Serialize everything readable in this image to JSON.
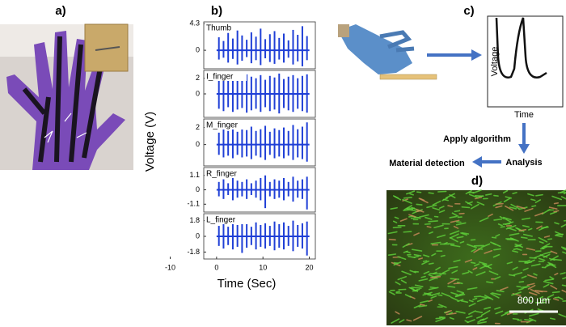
{
  "panel_labels": [
    "a)",
    "b)",
    "c)",
    "d)"
  ],
  "shared_axis": {
    "ylabel": "Voltage (V)",
    "xlabel": "Time (Sec)",
    "xlim": [
      -10,
      21.3
    ],
    "xticks": [
      -10,
      0,
      10,
      20
    ]
  },
  "chart_data": [
    {
      "type": "spike",
      "title": "Thumb",
      "ylim": [
        -3,
        4.6
      ],
      "yticks": [
        0,
        4.3
      ],
      "x": [
        0.5,
        1.5,
        2.5,
        3.5,
        4.5,
        5.5,
        6.5,
        7.5,
        8.5,
        9.5,
        10.5,
        11.5,
        12.5,
        13.5,
        14.5,
        15.5,
        16.5,
        17.5,
        18.5,
        19.5
      ],
      "high": [
        2.1,
        1.5,
        2.8,
        1.9,
        3.2,
        2.4,
        1.7,
        2.9,
        2.2,
        3.5,
        1.8,
        2.6,
        3.1,
        2.0,
        2.7,
        1.6,
        3.3,
        2.5,
        3.9,
        2.3
      ],
      "low": [
        -1.5,
        -1.2,
        -2.0,
        -1.4,
        -2.3,
        -1.7,
        -1.1,
        -2.1,
        -1.6,
        -2.4,
        -1.3,
        -1.9,
        -2.2,
        -1.5,
        -2.0,
        -1.2,
        -2.3,
        -1.8,
        -2.6,
        -1.6
      ]
    },
    {
      "type": "spike",
      "title": "I_finger",
      "ylim": [
        -3,
        3
      ],
      "yticks": [
        0,
        2
      ],
      "x": [
        0.5,
        1.5,
        2.5,
        3.5,
        4.5,
        5.5,
        6.5,
        7.5,
        8.5,
        9.5,
        10.5,
        11.5,
        12.5,
        13.5,
        14.5,
        15.5,
        16.5,
        17.5,
        18.5,
        19.5
      ],
      "high": [
        2.0,
        2.3,
        1.8,
        2.4,
        2.1,
        1.9,
        2.5,
        2.2,
        2.0,
        2.4,
        1.8,
        2.3,
        2.1,
        2.6,
        1.9,
        2.2,
        2.4,
        2.0,
        2.3,
        2.5
      ],
      "low": [
        -1.9,
        -2.2,
        -1.7,
        -2.3,
        -2.0,
        -1.8,
        -2.4,
        -2.1,
        -1.9,
        -2.3,
        -1.7,
        -2.2,
        -2.0,
        -2.5,
        -1.8,
        -2.1,
        -2.3,
        -1.9,
        -2.2,
        -2.4
      ]
    },
    {
      "type": "spike",
      "title": "M_finger",
      "ylim": [
        -2.5,
        3
      ],
      "yticks": [
        0,
        2
      ],
      "x": [
        0.5,
        1.5,
        2.5,
        3.5,
        4.5,
        5.5,
        6.5,
        7.5,
        8.5,
        9.5,
        10.5,
        11.5,
        12.5,
        13.5,
        14.5,
        15.5,
        16.5,
        17.5,
        18.5,
        19.5
      ],
      "high": [
        1.4,
        1.8,
        1.6,
        2.0,
        1.5,
        1.9,
        1.7,
        2.1,
        1.6,
        1.8,
        2.2,
        1.5,
        1.9,
        1.7,
        2.0,
        1.6,
        2.3,
        1.8,
        2.1,
        2.6
      ],
      "low": [
        -1.2,
        -1.5,
        -1.3,
        -1.6,
        -1.2,
        -1.5,
        -1.4,
        -1.7,
        -1.3,
        -1.5,
        -1.8,
        -1.2,
        -1.6,
        -1.4,
        -1.6,
        -1.3,
        -1.8,
        -1.5,
        -1.7,
        -2.0
      ]
    },
    {
      "type": "spike",
      "title": "R_finger",
      "ylim": [
        -1.7,
        1.7
      ],
      "yticks": [
        -1.1,
        0,
        1.1
      ],
      "x": [
        0.5,
        1.5,
        2.5,
        3.5,
        4.5,
        5.5,
        6.5,
        7.5,
        8.5,
        9.5,
        10.5,
        11.5,
        12.5,
        13.5,
        14.5,
        15.5,
        16.5,
        17.5,
        18.5,
        19.5
      ],
      "high": [
        0.6,
        0.8,
        0.5,
        0.9,
        0.7,
        0.6,
        0.8,
        0.5,
        0.7,
        0.9,
        1.1,
        0.6,
        0.8,
        0.7,
        0.9,
        0.6,
        1.0,
        0.7,
        0.8,
        1.0
      ],
      "low": [
        -0.5,
        -0.7,
        -0.4,
        -0.8,
        -0.6,
        -0.5,
        -0.7,
        -0.4,
        -0.6,
        -0.8,
        -1.4,
        -0.5,
        -0.7,
        -0.6,
        -0.8,
        -0.5,
        -0.9,
        -0.6,
        -0.7,
        -1.5
      ]
    },
    {
      "type": "spike",
      "title": "L_finger",
      "ylim": [
        -2.6,
        2.6
      ],
      "yticks": [
        -1.8,
        0,
        1.8
      ],
      "x": [
        0.5,
        1.5,
        2.5,
        3.5,
        4.5,
        5.5,
        6.5,
        7.5,
        8.5,
        9.5,
        10.5,
        11.5,
        12.5,
        13.5,
        14.5,
        15.5,
        16.5,
        17.5,
        18.5,
        19.5
      ],
      "high": [
        1.2,
        1.5,
        1.1,
        1.6,
        1.3,
        2.2,
        1.4,
        1.1,
        1.6,
        1.3,
        1.5,
        1.2,
        1.7,
        1.4,
        1.6,
        1.2,
        1.8,
        1.3,
        1.5,
        1.7
      ],
      "low": [
        -1.1,
        -1.4,
        -1.0,
        -1.5,
        -1.2,
        -1.9,
        -1.3,
        -1.0,
        -1.5,
        -1.2,
        -1.4,
        -1.1,
        -1.6,
        -1.3,
        -1.5,
        -1.1,
        -1.7,
        -1.2,
        -1.4,
        -2.2
      ]
    }
  ],
  "diagram": {
    "plot_ylabel": "Voltage",
    "plot_xlabel": "Time",
    "steps": [
      "Apply algorithm",
      "Analysis",
      "Material detection"
    ]
  },
  "scale_bar": "800 µm"
}
